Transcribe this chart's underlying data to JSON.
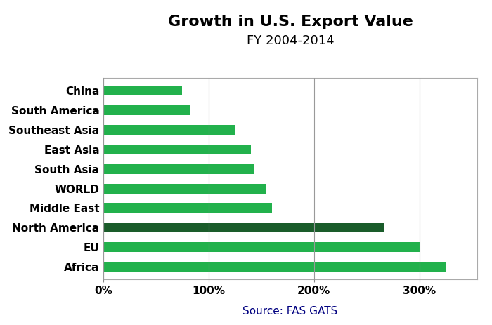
{
  "title_line1": "Growth in U.S. Export Value",
  "title_line2": "FY 2004-2014",
  "source": "Source: FAS GATS",
  "categories": [
    "China",
    "South America",
    "Southeast Asia",
    "East Asia",
    "South Asia",
    "WORLD",
    "Middle East",
    "North America",
    "EU",
    "Africa"
  ],
  "values": [
    325,
    300,
    267,
    160,
    155,
    143,
    140,
    125,
    83,
    75
  ],
  "bar_colors": [
    "#22b14c",
    "#22b14c",
    "#1a5c2a",
    "#22b14c",
    "#22b14c",
    "#22b14c",
    "#22b14c",
    "#22b14c",
    "#22b14c",
    "#22b14c"
  ],
  "xlim": [
    0,
    355
  ],
  "xticks": [
    0,
    100,
    200,
    300
  ],
  "xticklabels": [
    "0%",
    "100%",
    "200%",
    "300%"
  ],
  "background_color": "#ffffff",
  "grid_color": "#999999",
  "title_fontsize": 16,
  "subtitle_fontsize": 13,
  "label_fontsize": 11,
  "tick_fontsize": 11,
  "source_fontsize": 11,
  "bar_height": 0.5
}
